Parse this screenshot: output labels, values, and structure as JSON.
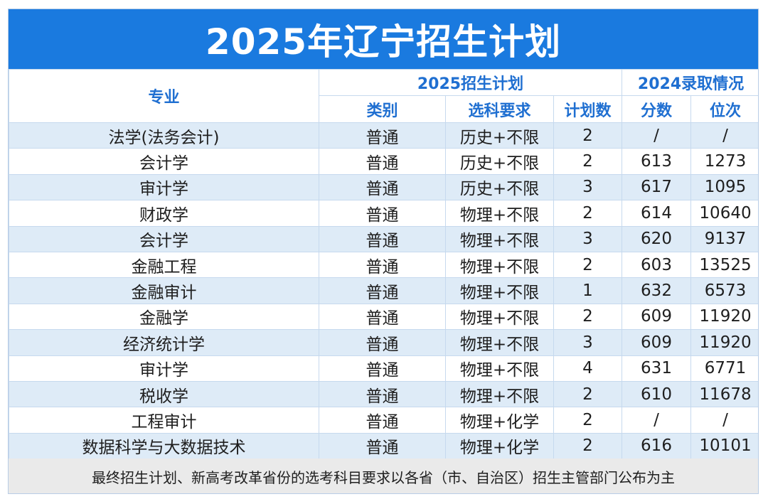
{
  "title": "2025年辽宁招生计划",
  "headers": {
    "major": "专业",
    "plan_group": "2025招生计划",
    "admit_group": "2024录取情况",
    "category": "类别",
    "subject_req": "选科要求",
    "plan_count": "计划数",
    "score": "分数",
    "rank": "位次"
  },
  "rows": [
    {
      "major": "法学(法务会计)",
      "category": "普通",
      "subject_req": "历史+不限",
      "plan_count": "2",
      "score": "/",
      "rank": "/"
    },
    {
      "major": "会计学",
      "category": "普通",
      "subject_req": "历史+不限",
      "plan_count": "2",
      "score": "613",
      "rank": "1273"
    },
    {
      "major": "审计学",
      "category": "普通",
      "subject_req": "历史+不限",
      "plan_count": "3",
      "score": "617",
      "rank": "1095"
    },
    {
      "major": "财政学",
      "category": "普通",
      "subject_req": "物理+不限",
      "plan_count": "2",
      "score": "614",
      "rank": "10640"
    },
    {
      "major": "会计学",
      "category": "普通",
      "subject_req": "物理+不限",
      "plan_count": "3",
      "score": "620",
      "rank": "9137"
    },
    {
      "major": "金融工程",
      "category": "普通",
      "subject_req": "物理+不限",
      "plan_count": "2",
      "score": "603",
      "rank": "13525"
    },
    {
      "major": "金融审计",
      "category": "普通",
      "subject_req": "物理+不限",
      "plan_count": "1",
      "score": "632",
      "rank": "6573"
    },
    {
      "major": "金融学",
      "category": "普通",
      "subject_req": "物理+不限",
      "plan_count": "2",
      "score": "609",
      "rank": "11920"
    },
    {
      "major": "经济统计学",
      "category": "普通",
      "subject_req": "物理+不限",
      "plan_count": "3",
      "score": "609",
      "rank": "11920"
    },
    {
      "major": "审计学",
      "category": "普通",
      "subject_req": "物理+不限",
      "plan_count": "4",
      "score": "631",
      "rank": "6771"
    },
    {
      "major": "税收学",
      "category": "普通",
      "subject_req": "物理+不限",
      "plan_count": "2",
      "score": "610",
      "rank": "11678"
    },
    {
      "major": "工程审计",
      "category": "普通",
      "subject_req": "物理+化学",
      "plan_count": "2",
      "score": "/",
      "rank": "/"
    },
    {
      "major": "数据科学与大数据技术",
      "category": "普通",
      "subject_req": "物理+化学",
      "plan_count": "2",
      "score": "616",
      "rank": "10101"
    }
  ],
  "footer": "最终招生计划、新高考改革省份的选考科目要求以各省（市、自治区）招生主管部门公布为主",
  "colors": {
    "title_bg": "#1a7adf",
    "header_text": "#1f6fd1",
    "stripe": "#deebf7",
    "footer_bg": "#eaeaea"
  }
}
